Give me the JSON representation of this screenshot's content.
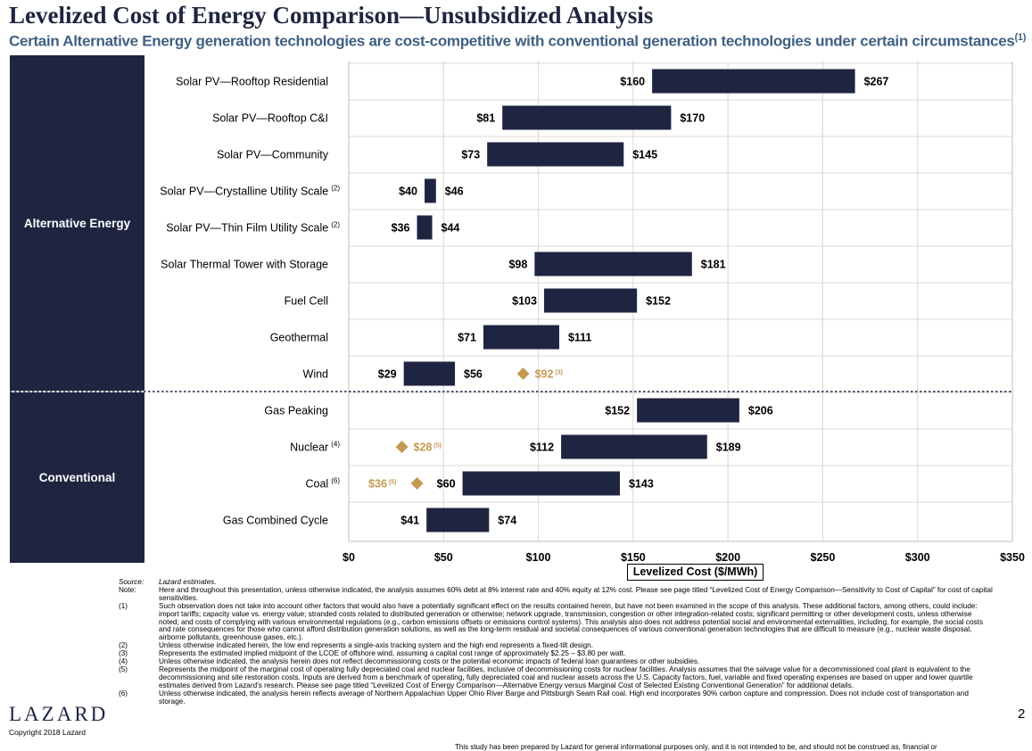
{
  "title": "Levelized Cost of Energy Comparison—Unsubsidized Analysis",
  "subtitle": "Certain Alternative Energy generation technologies are cost-competitive with conventional generation technologies under certain circumstances",
  "subtitle_note": "(1)",
  "groups": {
    "alternative": "Alternative Energy",
    "conventional": "Conventional"
  },
  "colors": {
    "bar": "#1f2540",
    "marker": "#c49a52",
    "subtitle": "#3f6082",
    "grid": "#d6d6d6"
  },
  "chart_data": {
    "type": "bar",
    "orientation": "horizontal-floating-range",
    "xlabel": "Levelized Cost ($/MWh)",
    "xlim": [
      0,
      350
    ],
    "xticks": [
      0,
      50,
      100,
      150,
      200,
      250,
      300,
      350
    ],
    "xtick_labels": [
      "$0",
      "$50",
      "$100",
      "$150",
      "$200",
      "$250",
      "$300",
      "$350"
    ],
    "grid": true,
    "categories": [
      {
        "label": "Solar PV—Rooftop Residential",
        "note": "",
        "group": "alternative",
        "low": 160,
        "high": 267,
        "low_label": "$160",
        "high_label": "$267"
      },
      {
        "label": "Solar PV—Rooftop C&I",
        "note": "",
        "group": "alternative",
        "low": 81,
        "high": 170,
        "low_label": "$81",
        "high_label": "$170"
      },
      {
        "label": "Solar PV—Community",
        "note": "",
        "group": "alternative",
        "low": 73,
        "high": 145,
        "low_label": "$73",
        "high_label": "$145"
      },
      {
        "label": "Solar PV—Crystalline Utility Scale",
        "note": "(2)",
        "group": "alternative",
        "low": 40,
        "high": 46,
        "low_label": "$40",
        "high_label": "$46"
      },
      {
        "label": "Solar PV—Thin Film Utility Scale",
        "note": "(2)",
        "group": "alternative",
        "low": 36,
        "high": 44,
        "low_label": "$36",
        "high_label": "$44"
      },
      {
        "label": "Solar Thermal Tower with Storage",
        "note": "",
        "group": "alternative",
        "low": 98,
        "high": 181,
        "low_label": "$98",
        "high_label": "$181"
      },
      {
        "label": "Fuel Cell",
        "note": "",
        "group": "alternative",
        "low": 103,
        "high": 152,
        "low_label": "$103",
        "high_label": "$152"
      },
      {
        "label": "Geothermal",
        "note": "",
        "group": "alternative",
        "low": 71,
        "high": 111,
        "low_label": "$71",
        "high_label": "$111"
      },
      {
        "label": "Wind",
        "note": "",
        "group": "alternative",
        "low": 29,
        "high": 56,
        "low_label": "$29",
        "high_label": "$56",
        "marker": {
          "value": 92,
          "label": "$92",
          "note": "(3)",
          "side": "right"
        }
      },
      {
        "label": "Gas Peaking",
        "note": "",
        "group": "conventional",
        "low": 152,
        "high": 206,
        "low_label": "$152",
        "high_label": "$206"
      },
      {
        "label": "Nuclear",
        "note": "(4)",
        "group": "conventional",
        "low": 112,
        "high": 189,
        "low_label": "$112",
        "high_label": "$189",
        "marker": {
          "value": 28,
          "label": "$28",
          "note": "(5)",
          "side": "right"
        }
      },
      {
        "label": "Coal",
        "note": "(6)",
        "group": "conventional",
        "low": 60,
        "high": 143,
        "low_label": "$60",
        "high_label": "$143",
        "marker": {
          "value": 36,
          "label": "$36",
          "note": "(5)",
          "side": "left"
        }
      },
      {
        "label": "Gas Combined Cycle",
        "note": "",
        "group": "conventional",
        "low": 41,
        "high": 74,
        "low_label": "$41",
        "high_label": "$74"
      }
    ]
  },
  "notes": [
    {
      "label": "Source:",
      "text": "Lazard estimates.",
      "italic": true
    },
    {
      "label": "Note:",
      "text": "Here and throughout this presentation, unless otherwise indicated, the analysis assumes 60% debt at 8% interest rate and 40% equity at 12% cost. Please see page titled “Levelized Cost of Energy Comparison—Sensitivity to Cost of Capital” for cost of capital sensitivities.",
      "italic": false
    },
    {
      "label": "(1)",
      "text": "Such observation does not take into account other factors that would also have a potentially significant effect on the results contained herein, but have not been examined in the scope of this analysis. These additional factors, among others, could include: import tariffs; capacity value vs. energy value; stranded costs related to distributed generation or otherwise; network upgrade, transmission, congestion or other integration-related costs; significant permitting or other development costs, unless otherwise noted; and costs of complying with various environmental regulations (e.g., carbon emissions offsets or emissions control systems). This analysis also does not address potential social and environmental externalities, including, for example, the social costs and rate consequences for those who cannot afford distribution generation solutions, as well as the long-term residual and societal consequences of various conventional generation technologies that are difficult to measure (e.g., nuclear waste disposal, airborne pollutants, greenhouse gases, etc.).",
      "italic": false
    },
    {
      "label": "(2)",
      "text": "Unless otherwise indicated herein, the low end represents a single-axis tracking system and the high end represents a fixed-tilt design.",
      "italic": false
    },
    {
      "label": "(3)",
      "text": "Represents the estimated implied midpoint of the LCOE of offshore wind, assuming a capital cost range of approximately $2.25 – $3.80 per watt.",
      "italic": false
    },
    {
      "label": "(4)",
      "text": "Unless otherwise indicated, the analysis herein does not reflect decommissioning costs or the potential economic impacts of federal loan guarantees or other subsidies.",
      "italic": false
    },
    {
      "label": "(5)",
      "text": "Represents the midpoint of the marginal cost of operating fully depreciated coal and nuclear facilities, inclusive of decommissioning costs for nuclear facilities. Analysis assumes that the salvage value for a decommissioned coal plant is equivalent to the decommissioning and site restoration costs. Inputs are derived from a benchmark of operating, fully depreciated coal and nuclear assets across the U.S. Capacity factors, fuel, variable and fixed operating expenses are based on upper and lower quartile estimates derived from Lazard’s research. Please see page titled “Levelized Cost of Energy Comparison—Alternative Energy versus Marginal Cost of Selected Existing Conventional Generation” for additional details.",
      "italic": false
    },
    {
      "label": "(6)",
      "text": "Unless otherwise indicated, the analysis herein reflects average of Northern Appalachian Upper Ohio River Barge and Pittsburgh Seam Rail coal. High end incorporates 90% carbon capture and compression. Does not include cost of transportation and storage.",
      "italic": false
    }
  ],
  "footer": {
    "logo": "LAZARD",
    "copyright": "Copyright 2018 Lazard",
    "page": "2",
    "disclaimer": "This study has been prepared by Lazard for general informational purposes only, and it is not intended to be, and should not be construed as, financial or"
  }
}
